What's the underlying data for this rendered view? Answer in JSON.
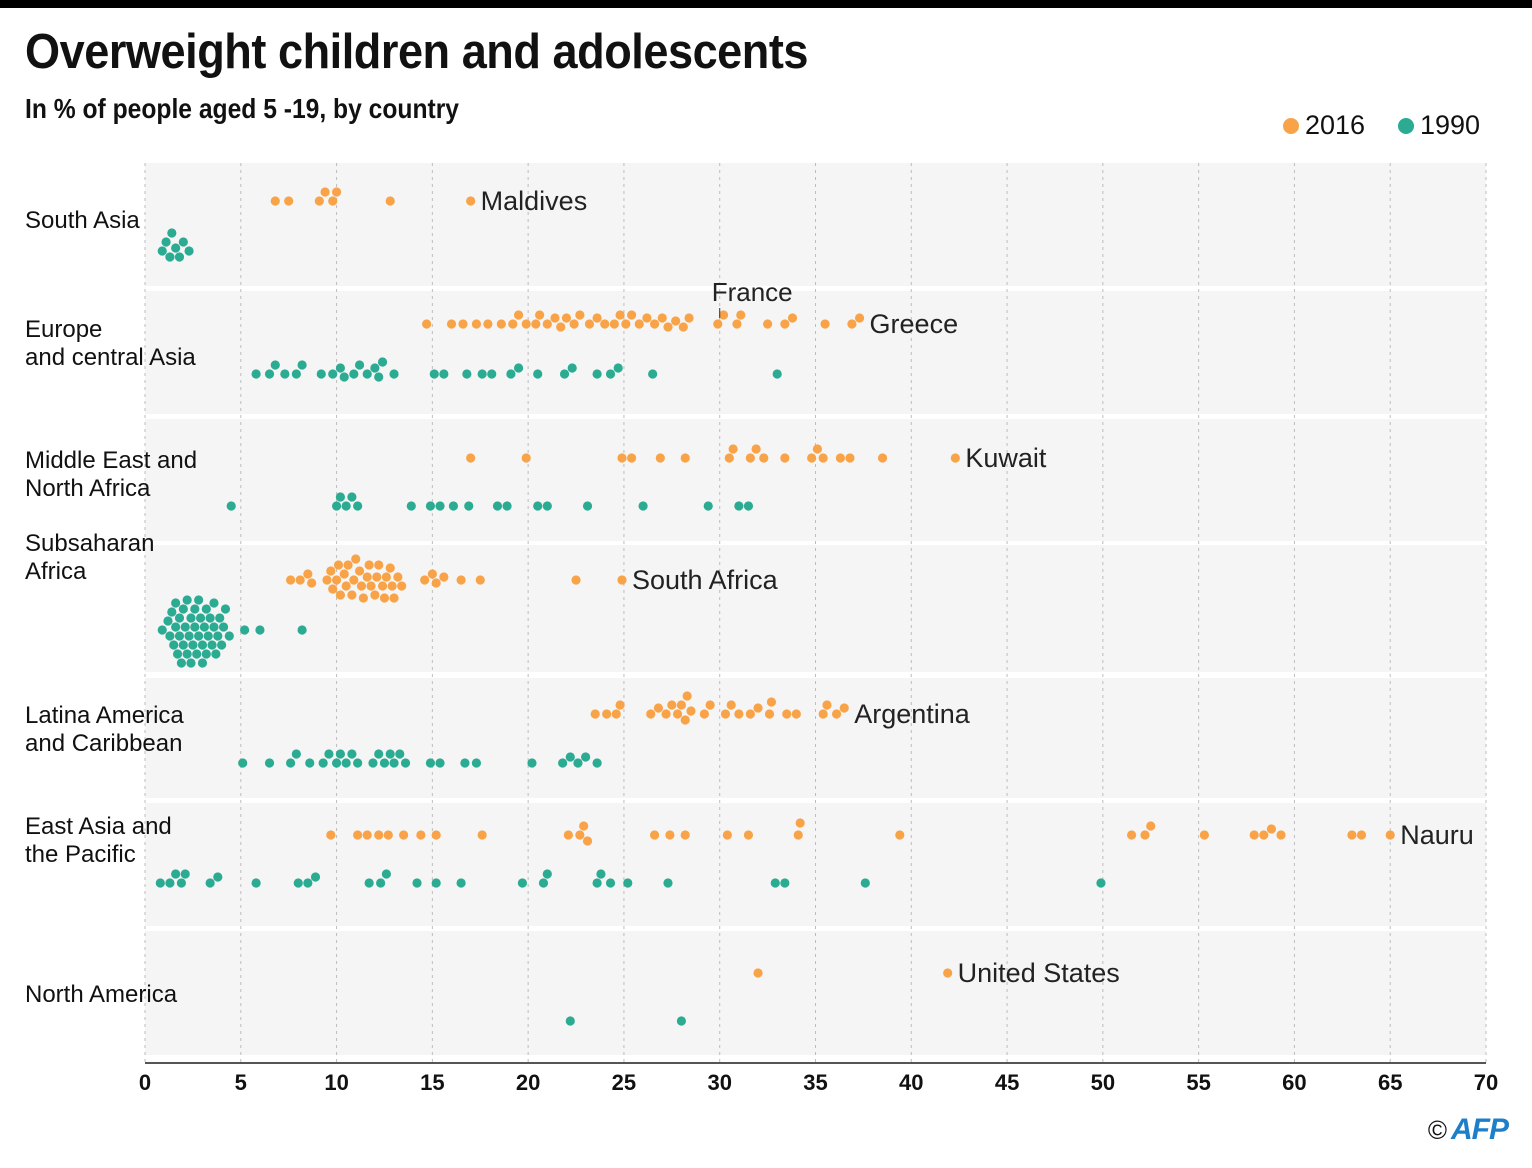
{
  "header": {
    "title": "Overweight children and adolescents",
    "subtitle": "In % of people aged 5 -19, by country"
  },
  "legend": [
    {
      "label": "2016",
      "color": "#f9a348"
    },
    {
      "label": "1990",
      "color": "#2bab92"
    }
  ],
  "footer": {
    "copyright": "©",
    "logo": "AFP"
  },
  "chart_data": {
    "type": "scatter",
    "subtype": "beeswarm",
    "title": "Overweight children and adolescents",
    "subtitle": "In % of people aged 5 -19, by country",
    "xlabel": "",
    "ylabel": "",
    "xlim": [
      0,
      70
    ],
    "xticks": [
      0,
      5,
      10,
      15,
      20,
      25,
      30,
      35,
      40,
      45,
      50,
      55,
      60,
      65,
      70
    ],
    "grid": "vertical dotted",
    "legend_position": "top-right",
    "series_colors": {
      "2016": "#f9a348",
      "1990": "#2bab92"
    },
    "groups": [
      {
        "region": "South Asia",
        "label_lines": [
          "South Asia"
        ],
        "values_2016": [
          6.8,
          7.5,
          9.1,
          9.4,
          9.8,
          10.0,
          12.8,
          17.0
        ],
        "values_1990": [
          0.9,
          1.1,
          1.3,
          1.4,
          1.6,
          1.8,
          2.0,
          2.3
        ],
        "annotations": [
          {
            "text": "Maldives",
            "series": "2016",
            "value": 17.0
          }
        ]
      },
      {
        "region": "Europe and central Asia",
        "label_lines": [
          "Europe",
          "and central Asia"
        ],
        "values_2016": [
          14.7,
          16.0,
          16.6,
          17.3,
          17.9,
          18.6,
          19.2,
          19.5,
          19.9,
          20.4,
          20.6,
          21.0,
          21.4,
          21.7,
          22.0,
          22.4,
          22.7,
          23.2,
          23.6,
          24.0,
          24.5,
          24.8,
          25.1,
          25.4,
          25.8,
          26.2,
          26.6,
          27.0,
          27.3,
          27.7,
          28.1,
          28.4,
          29.9,
          30.2,
          30.9,
          31.1,
          32.5,
          33.4,
          33.8,
          35.5,
          36.9,
          37.3
        ],
        "values_1990": [
          5.8,
          6.5,
          6.8,
          7.3,
          7.9,
          8.2,
          9.2,
          9.8,
          10.2,
          10.4,
          10.9,
          11.2,
          11.6,
          12.0,
          12.2,
          12.4,
          13.0,
          15.1,
          15.6,
          16.8,
          17.6,
          18.1,
          19.1,
          19.5,
          20.5,
          21.9,
          22.3,
          23.6,
          24.3,
          24.7,
          26.5,
          33.0
        ],
        "annotations": [
          {
            "text": "France",
            "series": "2016",
            "value": 30.0
          },
          {
            "text": "Greece",
            "series": "2016",
            "value": 37.3
          }
        ]
      },
      {
        "region": "Middle East and North Africa",
        "label_lines": [
          "Middle East and",
          "North Africa"
        ],
        "values_2016": [
          17.0,
          19.9,
          24.9,
          25.4,
          26.9,
          28.2,
          30.5,
          30.7,
          31.6,
          31.9,
          32.3,
          33.4,
          34.8,
          35.1,
          35.4,
          36.3,
          36.8,
          38.5,
          42.3
        ],
        "values_1990": [
          4.5,
          10.0,
          10.2,
          10.5,
          10.8,
          11.1,
          13.9,
          14.9,
          15.4,
          16.1,
          16.9,
          18.4,
          18.9,
          20.5,
          21.0,
          23.1,
          26.0,
          29.4,
          31.0,
          31.5
        ],
        "annotations": [
          {
            "text": "Kuwait",
            "series": "2016",
            "value": 42.3
          }
        ]
      },
      {
        "region": "Subsaharan Africa",
        "label_lines": [
          "Subsaharan",
          "Africa"
        ],
        "values_2016": [
          7.6,
          8.1,
          8.5,
          8.7,
          9.5,
          9.8,
          10.0,
          10.2,
          10.4,
          10.6,
          10.8,
          11.0,
          11.2,
          11.4,
          11.6,
          11.8,
          12.0,
          12.2,
          12.4,
          12.6,
          12.8,
          13.0,
          13.2,
          13.4,
          9.7,
          10.1,
          10.5,
          10.9,
          11.3,
          11.7,
          12.1,
          12.5,
          12.9,
          14.6,
          15.0,
          15.2,
          15.6,
          16.5,
          17.5,
          22.5,
          24.9
        ],
        "values_1990": [
          0.9,
          1.2,
          1.4,
          1.6,
          1.8,
          2.0,
          2.2,
          2.4,
          2.6,
          2.8,
          3.0,
          3.2,
          3.4,
          3.6,
          3.8,
          4.0,
          4.2,
          4.4,
          1.3,
          1.7,
          2.1,
          2.5,
          2.9,
          3.3,
          3.7,
          4.1,
          1.5,
          1.9,
          2.3,
          2.7,
          3.1,
          3.5,
          3.9,
          1.6,
          2.0,
          2.4,
          2.8,
          3.2,
          3.6,
          1.8,
          2.2,
          2.6,
          3.0,
          5.2,
          6.0,
          8.2
        ],
        "annotations": [
          {
            "text": "South Africa",
            "series": "2016",
            "value": 24.9
          }
        ]
      },
      {
        "region": "Latina America and Caribbean",
        "label_lines": [
          "Latina America",
          "and Caribbean"
        ],
        "values_2016": [
          23.5,
          24.1,
          24.6,
          24.8,
          26.4,
          26.8,
          27.2,
          27.5,
          27.8,
          28.0,
          28.2,
          28.5,
          28.3,
          29.2,
          29.5,
          30.3,
          30.6,
          31.0,
          31.6,
          32.0,
          32.6,
          32.7,
          33.5,
          34.0,
          35.4,
          35.6,
          36.1,
          36.5
        ],
        "values_1990": [
          5.1,
          6.5,
          7.6,
          7.9,
          8.6,
          9.3,
          9.6,
          10.0,
          10.2,
          10.5,
          10.8,
          11.1,
          11.9,
          12.2,
          12.5,
          12.8,
          13.0,
          13.3,
          13.6,
          14.9,
          15.4,
          16.7,
          17.3,
          20.2,
          21.8,
          22.2,
          22.6,
          23.0,
          23.6
        ],
        "annotations": [
          {
            "text": "Argentina",
            "series": "2016",
            "value": 36.5
          }
        ]
      },
      {
        "region": "East Asia and the Pacific",
        "label_lines": [
          "East Asia and",
          "the Pacific"
        ],
        "values_2016": [
          9.7,
          11.1,
          11.6,
          12.2,
          12.7,
          13.5,
          14.4,
          15.2,
          17.6,
          22.1,
          22.7,
          22.9,
          23.1,
          26.6,
          27.4,
          28.2,
          30.4,
          31.5,
          34.1,
          34.2,
          39.4,
          51.5,
          52.2,
          52.5,
          55.3,
          57.9,
          58.4,
          58.8,
          59.3,
          63.0,
          63.5,
          65.0
        ],
        "values_1990": [
          0.8,
          1.3,
          1.6,
          1.9,
          2.1,
          3.4,
          3.8,
          5.8,
          8.0,
          8.5,
          8.9,
          11.7,
          12.3,
          12.6,
          14.2,
          15.2,
          16.5,
          19.7,
          20.8,
          21.0,
          23.6,
          23.8,
          24.3,
          25.2,
          27.3,
          32.9,
          33.4,
          37.6,
          49.9
        ],
        "annotations": [
          {
            "text": "Nauru",
            "series": "2016",
            "value": 65.0
          }
        ]
      },
      {
        "region": "North America",
        "label_lines": [
          "North America"
        ],
        "values_2016": [
          32.0,
          41.9
        ],
        "values_1990": [
          22.2,
          28.0
        ],
        "annotations": [
          {
            "text": "United States",
            "series": "2016",
            "value": 41.9
          }
        ]
      }
    ]
  }
}
